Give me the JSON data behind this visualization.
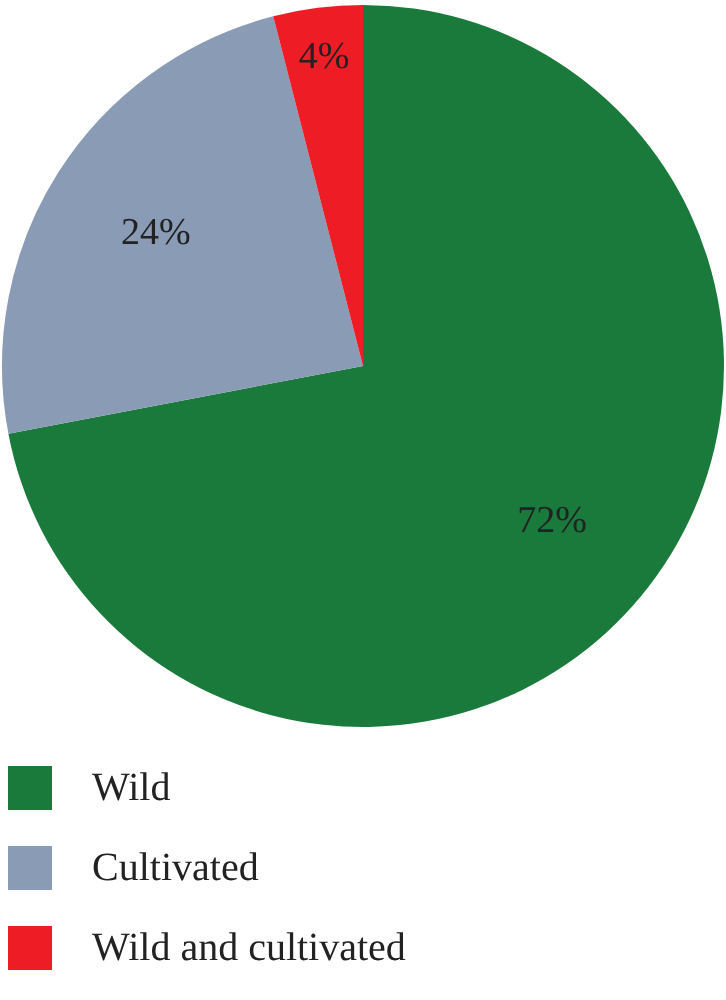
{
  "chart_data": {
    "type": "pie",
    "categories": [
      "Wild",
      "Cultivated",
      "Wild and cultivated"
    ],
    "values": [
      72,
      24,
      4
    ],
    "colors": [
      "#1a7a3c",
      "#8a9bb5",
      "#ee1c25"
    ],
    "value_labels": [
      "72%",
      "24%",
      "4%"
    ],
    "legend": "bottom"
  }
}
